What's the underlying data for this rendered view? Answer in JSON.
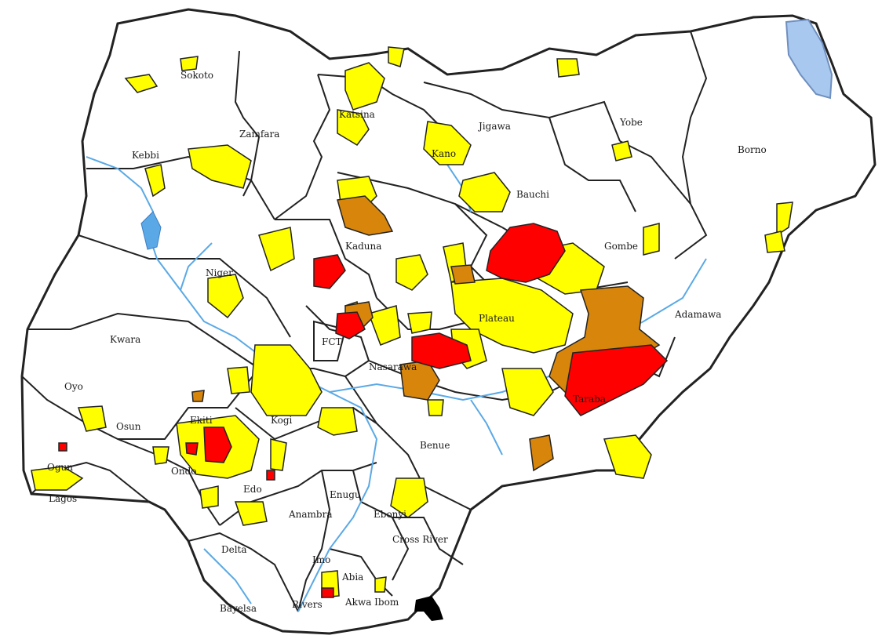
{
  "map": {
    "colors": {
      "background": "#ffffff",
      "land": "#ffffff",
      "border": "#222222",
      "water": "#5aa9e6",
      "lake": "#a9c8ef",
      "yellow_zone": "#ffff00",
      "orange_zone": "#d8860b",
      "red_zone": "#ff0000"
    },
    "labels": {
      "sokoto": "Sokoto",
      "katsina": "Katsina",
      "kano": "Kano",
      "jigawa": "Jigawa",
      "yobe": "Yobe",
      "borno": "Borno",
      "zamfara": "Zamfara",
      "kebbi": "Kebbi",
      "kaduna": "Kaduna",
      "bauchi": "Bauchi",
      "gombe": "Gombe",
      "niger": "Niger",
      "plateau": "Plateau",
      "adamawa": "Adamawa",
      "fct": "FCT",
      "nasarawa": "Nasarawa",
      "taraba": "Taraba",
      "kwara": "Kwara",
      "oyo": "Oyo",
      "kogi": "Kogi",
      "benue": "Benue",
      "ogun": "Ogun",
      "osun": "Osun",
      "ekiti": "Ekiti",
      "ondo": "Ondo",
      "edo": "Edo",
      "enugu": "Enugu",
      "ebonyi": "Ebonyi",
      "anambra": "Anambra",
      "delta": "Delta",
      "cross_river": "Cross River",
      "imo": "Imo",
      "abia": "Abia",
      "bayelsa": "Bayelsa",
      "rivers": "Rivers",
      "akwa_ibom": "Akwa Ibom",
      "lagos": "Lagos"
    }
  }
}
